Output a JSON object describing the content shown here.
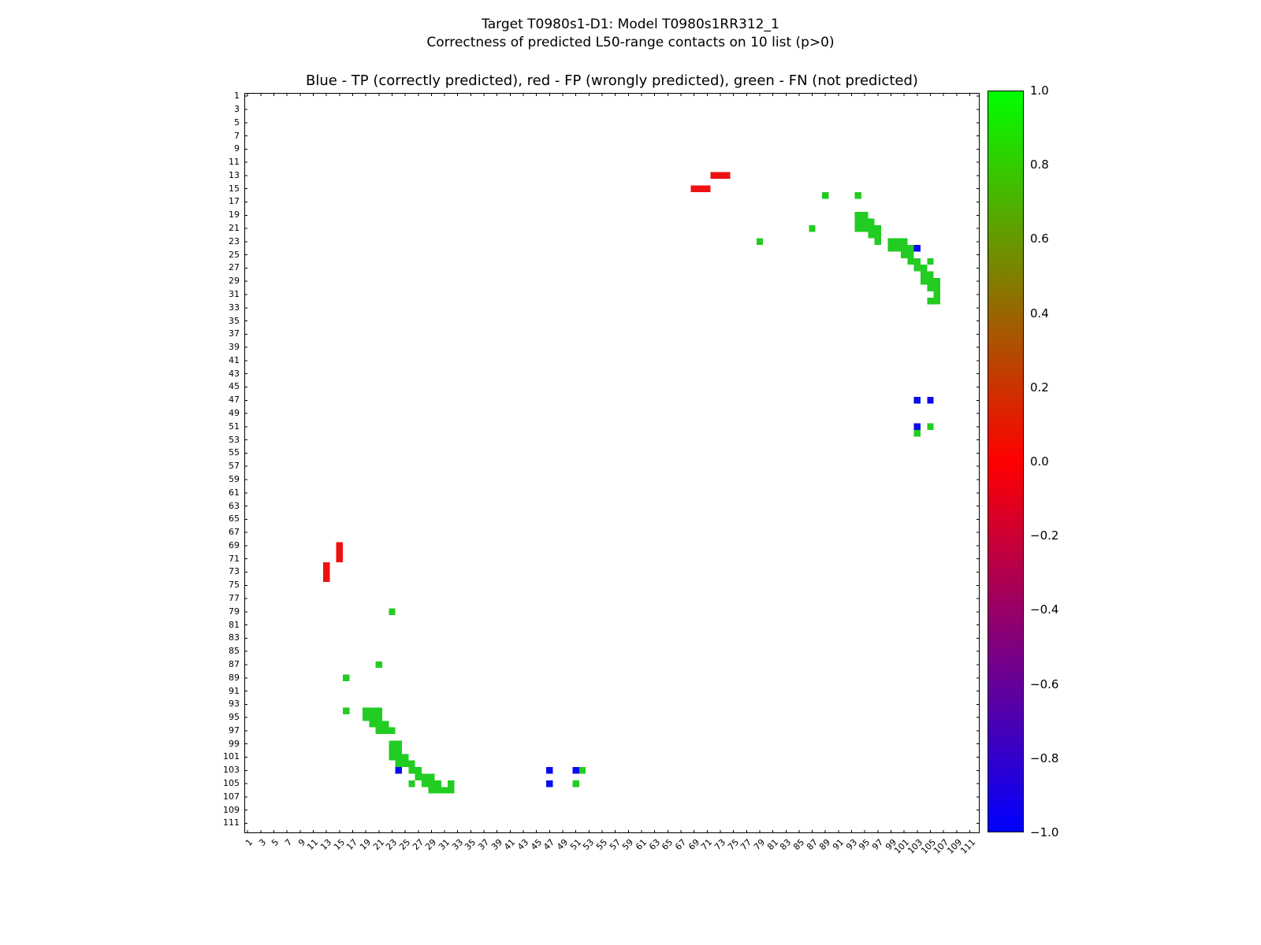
{
  "figure": {
    "suptitle_line1": "Target T0980s1-D1: Model T0980s1RR312_1",
    "suptitle_line2": "Correctness of predicted L50-range contacts on 10 list (p>0)"
  },
  "chart_data": {
    "type": "heatmap",
    "title": "Blue - TP (correctly predicted), red - FP (wrongly predicted), green - FN (not predicted)",
    "xlabel": "",
    "ylabel": "",
    "grid": false,
    "symmetric": true,
    "plot_bg": "#ffffff",
    "axis": {
      "min": 0.5,
      "max": 112.5,
      "tick_values": [
        1,
        3,
        5,
        7,
        9,
        11,
        13,
        15,
        17,
        19,
        21,
        23,
        25,
        27,
        29,
        31,
        33,
        35,
        37,
        39,
        41,
        43,
        45,
        47,
        49,
        51,
        53,
        55,
        57,
        59,
        61,
        63,
        65,
        67,
        69,
        71,
        73,
        75,
        77,
        79,
        81,
        83,
        85,
        87,
        89,
        91,
        93,
        95,
        97,
        99,
        101,
        103,
        105,
        107,
        109,
        111
      ]
    },
    "legend": {
      "TP": "Blue - TP (correctly predicted)",
      "FP": "red - FP (wrongly predicted)",
      "FN": "green - FN (not predicted)"
    },
    "colors": {
      "TP": "#0b0bee",
      "FP": "#ee1111",
      "FN": "#22cc22"
    },
    "contacts": [
      {
        "i": 13,
        "j": 72,
        "type": "FP"
      },
      {
        "i": 13,
        "j": 73,
        "type": "FP"
      },
      {
        "i": 13,
        "j": 74,
        "type": "FP"
      },
      {
        "i": 15,
        "j": 69,
        "type": "FP"
      },
      {
        "i": 15,
        "j": 70,
        "type": "FP"
      },
      {
        "i": 15,
        "j": 71,
        "type": "FP"
      },
      {
        "i": 16,
        "j": 89,
        "type": "FN"
      },
      {
        "i": 16,
        "j": 94,
        "type": "FN"
      },
      {
        "i": 19,
        "j": 94,
        "type": "FN"
      },
      {
        "i": 19,
        "j": 95,
        "type": "FN"
      },
      {
        "i": 20,
        "j": 94,
        "type": "FN"
      },
      {
        "i": 20,
        "j": 95,
        "type": "FN"
      },
      {
        "i": 20,
        "j": 96,
        "type": "FN"
      },
      {
        "i": 21,
        "j": 87,
        "type": "FN"
      },
      {
        "i": 21,
        "j": 94,
        "type": "FN"
      },
      {
        "i": 21,
        "j": 95,
        "type": "FN"
      },
      {
        "i": 21,
        "j": 96,
        "type": "FN"
      },
      {
        "i": 21,
        "j": 97,
        "type": "FN"
      },
      {
        "i": 22,
        "j": 96,
        "type": "FN"
      },
      {
        "i": 22,
        "j": 97,
        "type": "FN"
      },
      {
        "i": 23,
        "j": 79,
        "type": "FN"
      },
      {
        "i": 23,
        "j": 97,
        "type": "FN"
      },
      {
        "i": 23,
        "j": 99,
        "type": "FN"
      },
      {
        "i": 23,
        "j": 100,
        "type": "FN"
      },
      {
        "i": 23,
        "j": 101,
        "type": "FN"
      },
      {
        "i": 24,
        "j": 99,
        "type": "FN"
      },
      {
        "i": 24,
        "j": 100,
        "type": "FN"
      },
      {
        "i": 24,
        "j": 101,
        "type": "FN"
      },
      {
        "i": 24,
        "j": 102,
        "type": "FN"
      },
      {
        "i": 24,
        "j": 103,
        "type": "TP"
      },
      {
        "i": 25,
        "j": 101,
        "type": "FN"
      },
      {
        "i": 25,
        "j": 102,
        "type": "FN"
      },
      {
        "i": 26,
        "j": 102,
        "type": "FN"
      },
      {
        "i": 26,
        "j": 103,
        "type": "FN"
      },
      {
        "i": 26,
        "j": 105,
        "type": "FN"
      },
      {
        "i": 27,
        "j": 103,
        "type": "FN"
      },
      {
        "i": 27,
        "j": 104,
        "type": "FN"
      },
      {
        "i": 28,
        "j": 104,
        "type": "FN"
      },
      {
        "i": 28,
        "j": 105,
        "type": "FN"
      },
      {
        "i": 29,
        "j": 104,
        "type": "FN"
      },
      {
        "i": 29,
        "j": 105,
        "type": "FN"
      },
      {
        "i": 29,
        "j": 106,
        "type": "FN"
      },
      {
        "i": 30,
        "j": 105,
        "type": "FN"
      },
      {
        "i": 30,
        "j": 106,
        "type": "FN"
      },
      {
        "i": 31,
        "j": 106,
        "type": "FN"
      },
      {
        "i": 32,
        "j": 105,
        "type": "FN"
      },
      {
        "i": 32,
        "j": 106,
        "type": "FN"
      },
      {
        "i": 47,
        "j": 103,
        "type": "TP"
      },
      {
        "i": 47,
        "j": 105,
        "type": "TP"
      },
      {
        "i": 51,
        "j": 103,
        "type": "TP"
      },
      {
        "i": 51,
        "j": 105,
        "type": "FN"
      },
      {
        "i": 52,
        "j": 103,
        "type": "FN"
      }
    ],
    "colorbar": {
      "min": -1.0,
      "max": 1.0,
      "tick_labels": [
        "1.0",
        "0.8",
        "0.6",
        "0.4",
        "0.2",
        "0.0",
        "−0.2",
        "−0.4",
        "−0.6",
        "−0.8",
        "−1.0"
      ],
      "top_color": "#00ff00",
      "mid_color": "#ff0000",
      "bottom_color": "#0000ff"
    }
  }
}
